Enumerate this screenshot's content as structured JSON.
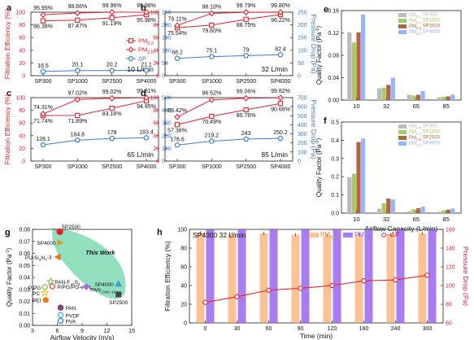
{
  "colors": {
    "red": "#e8202a",
    "blue": "#3b7cd6",
    "pm03": "#f8a868",
    "pm25": "#9966ee",
    "gray": "#bbbbbb",
    "green": "#a6cc6a",
    "brown": "#b26640",
    "lavender": "#99b3ff",
    "teal": "#6fd6a8"
  },
  "chart_data": [
    {
      "id": "a",
      "type": "line",
      "panel_label": "a",
      "condition": "10 L/min",
      "categories": [
        "SP300",
        "SP1000",
        "SP2500",
        "SP4000"
      ],
      "ylabel_left": "Filtration Efficiency (%)",
      "ylim_left": [
        0,
        100
      ],
      "yticks_left": [
        "0",
        "20",
        "40",
        "60",
        "80",
        "100"
      ],
      "ylabel_right": "",
      "ylim_right": [
        0,
        250
      ],
      "yticks_right": [
        "0",
        "50",
        "100",
        "150",
        "200",
        "250"
      ],
      "series": [
        {
          "name": "PM0.3",
          "axis": "left",
          "values": [
            86.38,
            87.47,
            91.19,
            95.98
          ],
          "labels": [
            "86.38%",
            "87.47%",
            "91.19%",
            "95.98%"
          ]
        },
        {
          "name": "PM2.5",
          "axis": "left",
          "values": [
            95.95,
            98.66,
            99.96,
            99.98
          ],
          "labels": [
            "95.95%",
            "98.66%",
            "99.96%",
            "99.98%"
          ]
        },
        {
          "name": "ΔP",
          "axis": "right",
          "values": [
            16.5,
            20.1,
            20.2,
            21.1
          ],
          "labels": [
            "16.5",
            "20.1",
            "20.2",
            "21.1"
          ]
        }
      ],
      "legend": [
        "PM",
        "0.3",
        "PM",
        "2.5",
        "ΔP"
      ]
    },
    {
      "id": "b",
      "type": "line",
      "panel_label": "b",
      "condition": "32 L/min",
      "categories": [
        "SP300",
        "SP1000",
        "SP2500",
        "SP4000"
      ],
      "ylabel_left": "",
      "ylim_left": [
        0,
        100
      ],
      "yticks_left": [
        "0",
        "20",
        "40",
        "60",
        "80",
        "100"
      ],
      "ylabel_right": "Pressure Drop (Pa)",
      "ylim_right": [
        0,
        250
      ],
      "yticks_right": [
        "0",
        "50",
        "100",
        "150",
        "200",
        "250"
      ],
      "series": [
        {
          "name": "PM0.3",
          "axis": "left",
          "values": [
            75.54,
            79.6,
            88.75,
            96.22
          ],
          "labels": [
            "75.54%",
            "79.60%",
            "88.75%",
            "96.22%"
          ]
        },
        {
          "name": "PM2.5",
          "axis": "left",
          "values": [
            79.11,
            98.1,
            99.79,
            99.8
          ],
          "labels": [
            "79.11%",
            "98.10%",
            "99.79%",
            "99.80%"
          ]
        },
        {
          "name": "ΔP",
          "axis": "right",
          "values": [
            68.2,
            75.1,
            79,
            82.4
          ],
          "labels": [
            "68.2",
            "75.1",
            "79",
            "82.4"
          ]
        }
      ]
    },
    {
      "id": "c",
      "type": "line",
      "panel_label": "c",
      "condition": "65 L/min",
      "categories": [
        "SP300",
        "SP1000",
        "SP2500",
        "SP4000"
      ],
      "ylabel_left": "Filtration Efficiency (%)",
      "ylim_left": [
        0,
        100
      ],
      "yticks_left": [
        "0",
        "20",
        "40",
        "60",
        "80",
        "100"
      ],
      "ylabel_right": "",
      "ylim_right": [
        0,
        500
      ],
      "yticks_right": [
        "0",
        "100",
        "200",
        "300",
        "400",
        "500"
      ],
      "series": [
        {
          "name": "PM0.3",
          "axis": "left",
          "values": [
            71.74,
            71.89,
            83.16,
            94.95
          ],
          "labels": [
            "71.74%",
            "71.89%",
            "83.16%",
            "94.95%"
          ]
        },
        {
          "name": "PM2.5",
          "axis": "left",
          "values": [
            74.31,
            97.02,
            99.02,
            99.81
          ],
          "labels": [
            "74.31%",
            "97.02%",
            "99.02%",
            "99.81%"
          ]
        },
        {
          "name": "ΔP",
          "axis": "right",
          "values": [
            128.1,
            164.8,
            178,
            183.4
          ],
          "labels": [
            "128.1",
            "164.8",
            "178",
            "183.4"
          ]
        }
      ]
    },
    {
      "id": "d",
      "type": "line",
      "panel_label": "d",
      "condition": "85 L/min",
      "categories": [
        "SP300",
        "SP1000",
        "SP2500",
        "SP4000"
      ],
      "ylabel_left": "",
      "ylim_left": [
        0,
        100
      ],
      "yticks_left": [
        "0",
        "20",
        "40",
        "60",
        "80",
        "100"
      ],
      "ylabel_right": "Pressure Drop (Pa)",
      "ylim_right": [
        0,
        700
      ],
      "yticks_right": [
        "0",
        "100",
        "200",
        "300",
        "400",
        "500",
        "600",
        "700"
      ],
      "series": [
        {
          "name": "PM0.3",
          "axis": "left",
          "values": [
            57.36,
            70.49,
            80.76,
            90.68
          ],
          "labels": [
            "57.36%",
            "70.49%",
            "80.76%",
            "90.68%"
          ]
        },
        {
          "name": "PM2.5",
          "axis": "left",
          "values": [
            69.42,
            96.52,
            99.06,
            99.82
          ],
          "labels": [
            "69.42%",
            "96.52%",
            "99.06%",
            "99.82%"
          ]
        },
        {
          "name": "ΔP",
          "axis": "right",
          "values": [
            176.6,
            219.2,
            243,
            250.2
          ],
          "labels": [
            "176.6",
            "219.2",
            "243",
            "250.2"
          ]
        }
      ]
    },
    {
      "id": "e",
      "type": "bar",
      "panel_label": "e",
      "categories": [
        "10",
        "32",
        "65",
        "85"
      ],
      "ylabel": "Quality Factor (Pa",
      "ylabel_sup": "-1",
      "ylabel_end": ")",
      "ylim": [
        0,
        0.16
      ],
      "yticks": [
        "0.00",
        "0.04",
        "0.08",
        "0.12",
        "0.16"
      ],
      "series": [
        {
          "name": "PM0.3 SP300",
          "values": [
            0.121,
            0.021,
            0.0095,
            0.005
          ]
        },
        {
          "name": "PM0.3 SP1000",
          "values": [
            0.103,
            0.022,
            0.008,
            0.006
          ]
        },
        {
          "name": "PM0.3 SP2500",
          "values": [
            0.121,
            0.027,
            0.0095,
            0.0065
          ]
        },
        {
          "name": "PM0.3 SP4000",
          "values": [
            0.153,
            0.04,
            0.016,
            0.0095
          ]
        }
      ],
      "legend": [
        [
          "PM",
          "0.3",
          " SP300"
        ],
        [
          "PM",
          "0.3",
          " SP1000"
        ],
        [
          "PM",
          "0.3",
          " SP2500"
        ],
        [
          "PM",
          "0.3",
          " SP4000"
        ]
      ]
    },
    {
      "id": "f",
      "type": "bar",
      "panel_label": "f",
      "categories": [
        "10",
        "32",
        "65",
        "85"
      ],
      "xlabel": "Airflow Capacity (L/min)",
      "ylabel": "Quality Factor (Pa",
      "ylabel_sup": "-1",
      "ylabel_end": ")",
      "ylim": [
        0,
        0.5
      ],
      "yticks": [
        "0.0",
        "0.1",
        "0.2",
        "0.3",
        "0.4",
        "0.5"
      ],
      "series": [
        {
          "name": "PM2.5 SP300",
          "values": [
            0.197,
            0.024,
            0.011,
            0.007
          ]
        },
        {
          "name": "PM2.5 SP1000",
          "values": [
            0.216,
            0.054,
            0.022,
            0.015
          ]
        },
        {
          "name": "PM2.5 SP2500",
          "values": [
            0.39,
            0.08,
            0.027,
            0.019
          ]
        },
        {
          "name": "PM2.5 SP4000",
          "values": [
            0.409,
            0.075,
            0.035,
            0.025
          ]
        }
      ],
      "legend": [
        [
          "PM",
          "2.5",
          " SP300"
        ],
        [
          "PM",
          "2.5",
          " SP1000"
        ],
        [
          "PM",
          "2.5",
          " SP2500"
        ],
        [
          "PM",
          "2.5",
          " SP4000"
        ]
      ]
    },
    {
      "id": "g",
      "type": "scatter",
      "panel_label": "g",
      "xlabel": "Airflow Velocity (m/s)",
      "ylabel": "Quality Factor (Pa",
      "ylabel_sup": "-1",
      "ylabel_end": ")",
      "xlim": [
        3,
        15
      ],
      "xticks": [
        "3",
        "6",
        "9",
        "12",
        "15"
      ],
      "ylim": [
        0,
        0.08
      ],
      "yticks": [
        "0.00",
        "0.01",
        "0.02",
        "0.03",
        "0.04",
        "0.05",
        "0.06",
        "0.07",
        "0.08"
      ],
      "annotation": "This Work",
      "points": [
        {
          "label": "SP2500",
          "x": 6.3,
          "y": 0.078,
          "marker": "circle",
          "color": "#e8202a"
        },
        {
          "label": "SP4000",
          "x": 6.3,
          "y": 0.069,
          "marker": "triangle-right",
          "color": "#c9a13a"
        },
        {
          "label": "PU-Si3N4-3",
          "x": 6.1,
          "y": 0.057,
          "marker": "triangle-left",
          "color": "#e07a20"
        },
        {
          "label": "PAN-F10S4",
          "x": 5.2,
          "y": 0.0365,
          "marker": "star",
          "color": "#86c56b"
        },
        {
          "label": "P/PG/PG-e-PL",
          "x": 5.4,
          "y": 0.0325,
          "marker": "circle-open",
          "color": "#e84a5f"
        },
        {
          "label": "P/PG",
          "x": 4.5,
          "y": 0.0318,
          "marker": "circle-open",
          "color": "#8fbf4a"
        },
        {
          "label": "PC",
          "x": 4.5,
          "y": 0.0272,
          "marker": "star",
          "color": "#e8c43a"
        },
        {
          "label": "PEI",
          "x": 4.6,
          "y": 0.0212,
          "marker": "pentagon",
          "color": "#f07c18"
        },
        {
          "label": "PAN-CNC-15",
          "x": 9.5,
          "y": 0.0322,
          "marker": "diamond",
          "color": "#b066e0"
        },
        {
          "label": "SP2500",
          "x": 13.4,
          "y": 0.0258,
          "marker": "square",
          "color": "#444444"
        },
        {
          "label": "SP4000",
          "x": 13.4,
          "y": 0.0345,
          "marker": "triangle",
          "color": "#3aa0d8"
        },
        {
          "label": "PAN",
          "x": 6.4,
          "y": 0.0148,
          "marker": "hexagon",
          "color": "#7a4a6a"
        },
        {
          "label": "PVDF",
          "x": 6.4,
          "y": 0.0086,
          "marker": "circle-open",
          "color": "#3ab8c8"
        },
        {
          "label": "PVA",
          "x": 6.4,
          "y": 0.0038,
          "marker": "circle-open",
          "color": "#3a7ad8"
        }
      ]
    },
    {
      "id": "h",
      "type": "bar",
      "panel_label": "h",
      "condition": "SP4000    32 L/min",
      "categories": [
        "0",
        "30",
        "60",
        "90",
        "120",
        "180",
        "240",
        "300"
      ],
      "xlabel": "Time (min)",
      "ylabel_left": "Filtration Efficiency (%)",
      "ylim_left": [
        0,
        100
      ],
      "yticks_left": [
        "0",
        "20",
        "40",
        "60",
        "80",
        "100"
      ],
      "ylabel_right": "Pressure Drop (Pa)",
      "ylim_right": [
        60,
        160
      ],
      "yticks_right": [
        "60",
        "80",
        "100",
        "120",
        "140",
        "160"
      ],
      "series": [
        {
          "name": "PM0.3",
          "axis": "left",
          "type": "bar",
          "values": [
            96.2,
            95.2,
            95.6,
            94.4,
            93.6,
            94.6,
            94.5,
            95.6
          ]
        },
        {
          "name": "PM2.5",
          "axis": "left",
          "type": "bar",
          "values": [
            99.8,
            99.8,
            99.8,
            99.8,
            99.8,
            99.8,
            99.8,
            99.8
          ]
        },
        {
          "name": "ΔP",
          "axis": "right",
          "type": "line",
          "values": [
            82,
            88,
            95,
            97,
            100,
            105,
            106,
            111
          ]
        }
      ],
      "legend": [
        [
          "PM",
          "0.3"
        ],
        [
          "PM",
          "2.5"
        ],
        [
          "",
          "−ΔP"
        ]
      ]
    }
  ]
}
